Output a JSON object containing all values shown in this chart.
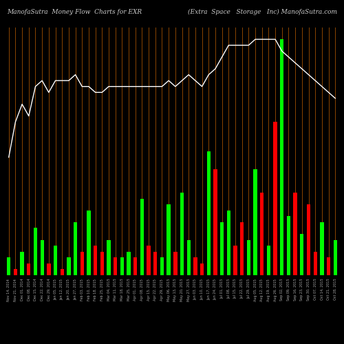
{
  "title_left": "ManofaSutra  Money Flow  Charts for EXR",
  "title_right": "(Extra  Space   Storage   Inc) ManofaSutra.com",
  "background_color": "#000000",
  "bar_colors_pattern": [
    "green",
    "red",
    "green",
    "red",
    "green",
    "green",
    "red",
    "green",
    "red",
    "green",
    "green",
    "red",
    "green",
    "red",
    "red",
    "green",
    "red",
    "green",
    "green",
    "red",
    "green",
    "red",
    "red",
    "green",
    "green",
    "red",
    "green",
    "green",
    "red",
    "red",
    "green",
    "red",
    "green",
    "green",
    "red",
    "red",
    "green",
    "green",
    "red",
    "green",
    "red",
    "green",
    "green",
    "red",
    "green",
    "red",
    "red",
    "green",
    "red",
    "green"
  ],
  "bar_values": [
    3,
    1,
    4,
    2,
    8,
    6,
    2,
    5,
    1,
    3,
    9,
    4,
    11,
    5,
    4,
    6,
    3,
    3,
    4,
    3,
    13,
    5,
    4,
    3,
    12,
    4,
    14,
    6,
    3,
    2,
    21,
    18,
    9,
    11,
    5,
    9,
    6,
    18,
    14,
    5,
    26,
    40,
    10,
    14,
    7,
    12,
    4,
    9,
    3,
    6
  ],
  "line_values": [
    20,
    26,
    29,
    27,
    32,
    33,
    31,
    33,
    33,
    33,
    34,
    32,
    32,
    31,
    31,
    32,
    32,
    32,
    32,
    32,
    32,
    32,
    32,
    32,
    33,
    32,
    33,
    34,
    33,
    32,
    34,
    35,
    37,
    39,
    39,
    39,
    39,
    40,
    40,
    40,
    40,
    38,
    37,
    36,
    35,
    34,
    33,
    32,
    31,
    30
  ],
  "grid_color": "#8B4500",
  "bar_width": 0.55,
  "green": "#00ff00",
  "red": "#ff0000",
  "line_color": "#ffffff",
  "ylim_max": 42,
  "line_yoffset": 0,
  "xlabel_fontsize": 3.5,
  "title_fontsize": 6.5,
  "labels": [
    "Nov 14, 2014",
    "Nov 21, 2014",
    "Dec 01, 2014",
    "Dec 08, 2014",
    "Dec 15, 2014",
    "Dec 22, 2014",
    "Dec 29, 2014",
    "Jan 05, 2015",
    "Jan 12, 2015",
    "Jan 20, 2015",
    "Jan 27, 2015",
    "Feb 03, 2015",
    "Feb 10, 2015",
    "Feb 18, 2015",
    "Feb 25, 2015",
    "Mar 04, 2015",
    "Mar 11, 2015",
    "Mar 18, 2015",
    "Mar 25, 2015",
    "Apr 01, 2015",
    "Apr 08, 2015",
    "Apr 15, 2015",
    "Apr 22, 2015",
    "Apr 29, 2015",
    "May 06, 2015",
    "May 13, 2015",
    "May 20, 2015",
    "May 27, 2015",
    "Jun 03, 2015",
    "Jun 10, 2015",
    "Jun 17, 2015",
    "Jun 24, 2015",
    "Jul 01, 2015",
    "Jul 08, 2015",
    "Jul 15, 2015",
    "Jul 22, 2015",
    "Jul 29, 2015",
    "Aug 05, 2015",
    "Aug 12, 2015",
    "Aug 19, 2015",
    "Aug 26, 2015",
    "Sep 02, 2015",
    "Sep 09, 2015",
    "Sep 16, 2015",
    "Sep 23, 2015",
    "Sep 30, 2015",
    "Oct 07, 2015",
    "Oct 14, 2015",
    "Oct 21, 2015",
    "Oct 28, 2015"
  ]
}
